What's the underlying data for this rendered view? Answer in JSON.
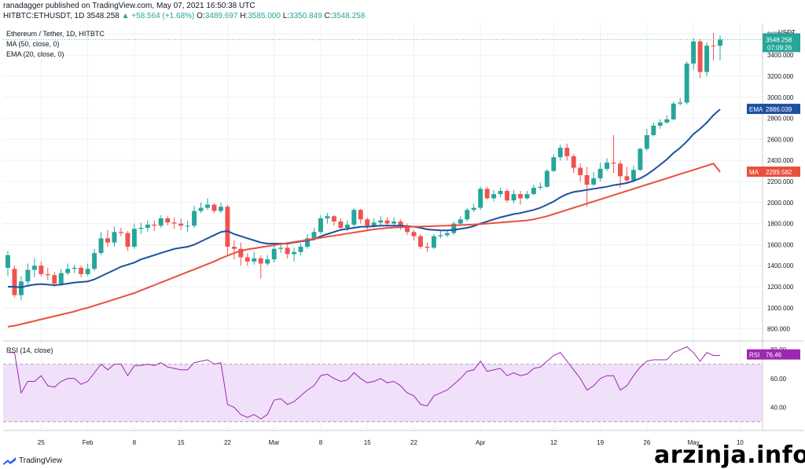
{
  "header": {
    "published": "ranadagger published on TradingView.com, May 07, 2021 16:50:38 UTC",
    "symbol": "HITBTC:ETHUSDT, 1D",
    "last": "3548.258",
    "change": "▲ +58.564 (+1.68%)",
    "open_label": "O:",
    "open": "3489.697",
    "high_label": "H:",
    "high": "3585.000",
    "low_label": "L:",
    "low": "3350.849",
    "close_label": "C:",
    "close": "3548.258"
  },
  "legend": {
    "title": "Ethereum / Tether, 1D, HITBTC",
    "ma": "MA (50, close, 0)",
    "ema": "EMA (20, close, 0)",
    "rsi": "RSI (14, close)"
  },
  "price_axis": {
    "unit": "USDT",
    "ticks": [
      3600,
      3400,
      3200,
      3000,
      2800,
      2600,
      2400,
      2200,
      2000,
      1800,
      1600,
      1400,
      1200,
      1000,
      800
    ],
    "tick_labels": [
      "3600.000",
      "3400.000",
      "3200.000",
      "3000.000",
      "2800.000",
      "2600.000",
      "2400.000",
      "2200.000",
      "2000.000",
      "1800.000",
      "1600.000",
      "1400.000",
      "1200.000",
      "1000.000",
      "800.000"
    ]
  },
  "badges": {
    "last_price": "3548.258",
    "last_time": "07:09:26",
    "ema_label": "EMA",
    "ema_value": "2886.039",
    "ma_label": "MA",
    "ma_value": "2289.582",
    "rsi_label": "RSI",
    "rsi_value": "76.46"
  },
  "rsi_axis": {
    "ticks": [
      80,
      60,
      40
    ],
    "tick_labels": [
      "80.00",
      "60.00",
      "40.00"
    ]
  },
  "time_axis": {
    "labels": [
      "25",
      "Feb",
      "8",
      "15",
      "22",
      "Mar",
      "8",
      "15",
      "22",
      "Apr",
      "12",
      "19",
      "26",
      "May",
      "10"
    ]
  },
  "colors": {
    "up": "#26a69a",
    "down": "#ef5350",
    "ema": "#1e50a0",
    "ma": "#e8503e",
    "rsi": "#9c27b0",
    "rsi_band": "#f0e0fa"
  },
  "footer": {
    "logo_text": "TradingView"
  },
  "watermark": "arzinja.info",
  "chart_data": {
    "type": "candlestick",
    "title": "Ethereum / Tether, 1D, HITBTC",
    "ylim": [
      700,
      3700
    ],
    "rsi_ylim": [
      25,
      85
    ],
    "x_start": "2021-01-20",
    "dates": [
      "2021-01-20",
      "2021-01-21",
      "2021-01-22",
      "2021-01-23",
      "2021-01-24",
      "2021-01-25",
      "2021-01-26",
      "2021-01-27",
      "2021-01-28",
      "2021-01-29",
      "2021-01-30",
      "2021-01-31",
      "2021-02-01",
      "2021-02-02",
      "2021-02-03",
      "2021-02-04",
      "2021-02-05",
      "2021-02-06",
      "2021-02-07",
      "2021-02-08",
      "2021-02-09",
      "2021-02-10",
      "2021-02-11",
      "2021-02-12",
      "2021-02-13",
      "2021-02-14",
      "2021-02-15",
      "2021-02-16",
      "2021-02-17",
      "2021-02-18",
      "2021-02-19",
      "2021-02-20",
      "2021-02-21",
      "2021-02-22",
      "2021-02-23",
      "2021-02-24",
      "2021-02-25",
      "2021-02-26",
      "2021-02-27",
      "2021-02-28",
      "2021-03-01",
      "2021-03-02",
      "2021-03-03",
      "2021-03-04",
      "2021-03-05",
      "2021-03-06",
      "2021-03-07",
      "2021-03-08",
      "2021-03-09",
      "2021-03-10",
      "2021-03-11",
      "2021-03-12",
      "2021-03-13",
      "2021-03-14",
      "2021-03-15",
      "2021-03-16",
      "2021-03-17",
      "2021-03-18",
      "2021-03-19",
      "2021-03-20",
      "2021-03-21",
      "2021-03-22",
      "2021-03-23",
      "2021-03-24",
      "2021-03-25",
      "2021-03-26",
      "2021-03-27",
      "2021-03-28",
      "2021-03-29",
      "2021-03-30",
      "2021-03-31",
      "2021-04-01",
      "2021-04-02",
      "2021-04-03",
      "2021-04-04",
      "2021-04-05",
      "2021-04-06",
      "2021-04-07",
      "2021-04-08",
      "2021-04-09",
      "2021-04-10",
      "2021-04-11",
      "2021-04-12",
      "2021-04-13",
      "2021-04-14",
      "2021-04-15",
      "2021-04-16",
      "2021-04-17",
      "2021-04-18",
      "2021-04-19",
      "2021-04-20",
      "2021-04-21",
      "2021-04-22",
      "2021-04-23",
      "2021-04-24",
      "2021-04-25",
      "2021-04-26",
      "2021-04-27",
      "2021-04-28",
      "2021-04-29",
      "2021-04-30",
      "2021-05-01",
      "2021-05-02",
      "2021-05-03",
      "2021-05-04",
      "2021-05-05",
      "2021-05-06",
      "2021-05-07"
    ],
    "candles": {
      "open": [
        1380,
        1370,
        1120,
        1250,
        1360,
        1400,
        1320,
        1310,
        1230,
        1330,
        1370,
        1380,
        1320,
        1370,
        1520,
        1660,
        1620,
        1720,
        1710,
        1580,
        1750,
        1760,
        1790,
        1780,
        1850,
        1810,
        1800,
        1780,
        1780,
        1920,
        1950,
        1980,
        1920,
        1960,
        1580,
        1560,
        1480,
        1440,
        1470,
        1420,
        1460,
        1560,
        1570,
        1510,
        1530,
        1580,
        1660,
        1720,
        1850,
        1870,
        1820,
        1760,
        1790,
        1930,
        1840,
        1780,
        1810,
        1830,
        1800,
        1820,
        1780,
        1720,
        1680,
        1580,
        1570,
        1680,
        1690,
        1710,
        1800,
        1840,
        1930,
        1950,
        2130,
        2040,
        2080,
        2110,
        2020,
        2080,
        2040,
        2080,
        2140,
        2150,
        2300,
        2430,
        2520,
        2440,
        2330,
        2260,
        2170,
        2230,
        2320,
        2380,
        2370,
        2250,
        2210,
        2310,
        2510,
        2640,
        2730,
        2760,
        2790,
        2940,
        2950,
        3320,
        3530,
        3240,
        3490,
        3489
      ],
      "close": [
        1500,
        1120,
        1250,
        1360,
        1400,
        1320,
        1310,
        1230,
        1330,
        1370,
        1380,
        1320,
        1370,
        1520,
        1660,
        1620,
        1720,
        1710,
        1580,
        1750,
        1760,
        1790,
        1780,
        1850,
        1810,
        1800,
        1780,
        1780,
        1920,
        1950,
        1980,
        1920,
        1960,
        1580,
        1560,
        1480,
        1440,
        1470,
        1420,
        1460,
        1560,
        1570,
        1510,
        1530,
        1580,
        1660,
        1720,
        1850,
        1870,
        1820,
        1760,
        1790,
        1930,
        1840,
        1780,
        1810,
        1830,
        1800,
        1820,
        1780,
        1720,
        1680,
        1580,
        1570,
        1680,
        1690,
        1710,
        1800,
        1840,
        1930,
        1950,
        2130,
        2040,
        2080,
        2110,
        2020,
        2080,
        2040,
        2080,
        2140,
        2150,
        2300,
        2430,
        2520,
        2440,
        2330,
        2260,
        2170,
        2230,
        2320,
        2380,
        2370,
        2250,
        2210,
        2310,
        2510,
        2640,
        2730,
        2760,
        2790,
        2940,
        2950,
        3320,
        3530,
        3240,
        3490,
        3489,
        3548
      ],
      "high": [
        1540,
        1400,
        1300,
        1420,
        1470,
        1440,
        1380,
        1340,
        1370,
        1420,
        1410,
        1400,
        1420,
        1560,
        1720,
        1740,
        1770,
        1760,
        1730,
        1800,
        1810,
        1830,
        1830,
        1880,
        1870,
        1860,
        1850,
        1830,
        1970,
        2000,
        2040,
        1990,
        2000,
        1980,
        1640,
        1620,
        1520,
        1530,
        1500,
        1500,
        1610,
        1620,
        1600,
        1570,
        1610,
        1700,
        1760,
        1880,
        1900,
        1880,
        1850,
        1830,
        1950,
        1940,
        1860,
        1850,
        1870,
        1860,
        1860,
        1840,
        1800,
        1740,
        1700,
        1620,
        1700,
        1730,
        1740,
        1820,
        1870,
        1950,
        1990,
        2150,
        2150,
        2120,
        2140,
        2130,
        2120,
        2110,
        2110,
        2170,
        2190,
        2320,
        2460,
        2550,
        2560,
        2460,
        2370,
        2340,
        2290,
        2380,
        2420,
        2640,
        2400,
        2340,
        2350,
        2520,
        2700,
        2760,
        2790,
        2830,
        2960,
        2990,
        3340,
        3560,
        3550,
        3520,
        3610,
        3585
      ],
      "low": [
        1300,
        1100,
        1070,
        1200,
        1290,
        1300,
        1260,
        1200,
        1210,
        1310,
        1330,
        1290,
        1300,
        1350,
        1500,
        1580,
        1580,
        1680,
        1540,
        1560,
        1700,
        1720,
        1730,
        1760,
        1780,
        1750,
        1740,
        1720,
        1760,
        1900,
        1930,
        1900,
        1900,
        1500,
        1460,
        1400,
        1400,
        1410,
        1280,
        1400,
        1430,
        1520,
        1470,
        1440,
        1500,
        1560,
        1640,
        1700,
        1800,
        1780,
        1740,
        1730,
        1770,
        1800,
        1730,
        1760,
        1780,
        1770,
        1770,
        1740,
        1690,
        1640,
        1560,
        1530,
        1560,
        1660,
        1670,
        1690,
        1780,
        1820,
        1910,
        1930,
        2030,
        2010,
        2050,
        2000,
        1990,
        1980,
        2030,
        2070,
        2120,
        2140,
        2290,
        2400,
        2400,
        2280,
        2200,
        1960,
        2160,
        2200,
        2300,
        2280,
        2140,
        2180,
        2190,
        2300,
        2490,
        2630,
        2700,
        2750,
        2780,
        2920,
        2930,
        3260,
        3180,
        3200,
        3350,
        3350
      ]
    },
    "series": [
      {
        "name": "EMA (20, close, 0)",
        "values": [
          1200,
          1200,
          1195,
          1210,
          1220,
          1225,
          1220,
          1215,
          1220,
          1230,
          1240,
          1245,
          1250,
          1270,
          1300,
          1330,
          1360,
          1390,
          1410,
          1430,
          1460,
          1480,
          1500,
          1520,
          1540,
          1560,
          1570,
          1580,
          1600,
          1630,
          1660,
          1690,
          1720,
          1730,
          1700,
          1680,
          1660,
          1640,
          1620,
          1610,
          1610,
          1610,
          1610,
          1620,
          1630,
          1640,
          1650,
          1680,
          1700,
          1720,
          1740,
          1750,
          1760,
          1770,
          1770,
          1775,
          1780,
          1780,
          1780,
          1780,
          1775,
          1770,
          1760,
          1745,
          1740,
          1735,
          1735,
          1740,
          1750,
          1760,
          1775,
          1800,
          1820,
          1840,
          1860,
          1875,
          1890,
          1900,
          1915,
          1930,
          1950,
          1980,
          2010,
          2050,
          2080,
          2100,
          2110,
          2120,
          2130,
          2140,
          2150,
          2165,
          2175,
          2185,
          2205,
          2230,
          2265,
          2310,
          2360,
          2410,
          2470,
          2520,
          2580,
          2650,
          2700,
          2760,
          2830,
          2886
        ]
      },
      {
        "name": "MA (50, close, 0)",
        "values": [
          820,
          830,
          845,
          860,
          875,
          890,
          905,
          920,
          935,
          950,
          965,
          985,
          1000,
          1020,
          1040,
          1060,
          1080,
          1100,
          1120,
          1140,
          1165,
          1190,
          1215,
          1240,
          1265,
          1290,
          1315,
          1340,
          1365,
          1390,
          1415,
          1440,
          1470,
          1495,
          1520,
          1540,
          1555,
          1565,
          1575,
          1585,
          1595,
          1605,
          1615,
          1625,
          1635,
          1645,
          1655,
          1665,
          1675,
          1685,
          1695,
          1705,
          1715,
          1725,
          1735,
          1745,
          1752,
          1758,
          1763,
          1766,
          1770,
          1770,
          1772,
          1774,
          1776,
          1778,
          1780,
          1783,
          1786,
          1789,
          1792,
          1795,
          1800,
          1805,
          1810,
          1815,
          1820,
          1825,
          1830,
          1840,
          1855,
          1870,
          1890,
          1910,
          1930,
          1950,
          1970,
          1990,
          2010,
          2030,
          2050,
          2070,
          2090,
          2110,
          2130,
          2150,
          2170,
          2190,
          2210,
          2230,
          2250,
          2270,
          2290,
          2310,
          2330,
          2350,
          2370,
          2290
        ]
      }
    ],
    "rsi": {
      "name": "RSI (14, close)",
      "values": [
        78,
        78,
        50,
        58,
        58,
        62,
        55,
        54,
        58,
        60,
        60,
        56,
        58,
        64,
        70,
        66,
        70,
        70,
        62,
        69,
        69,
        70,
        69,
        71,
        68,
        67,
        66,
        66,
        71,
        72,
        73,
        70,
        71,
        42,
        40,
        35,
        33,
        35,
        32,
        35,
        45,
        46,
        42,
        44,
        48,
        52,
        55,
        62,
        63,
        60,
        58,
        59,
        64,
        60,
        57,
        58,
        60,
        57,
        58,
        55,
        50,
        48,
        42,
        41,
        48,
        50,
        52,
        56,
        60,
        65,
        66,
        72,
        65,
        66,
        67,
        62,
        64,
        62,
        63,
        67,
        68,
        72,
        76,
        78,
        72,
        66,
        60,
        52,
        55,
        60,
        62,
        62,
        52,
        55,
        62,
        68,
        72,
        73,
        73,
        73,
        78,
        80,
        82,
        78,
        72,
        78,
        76,
        76
      ]
    }
  }
}
